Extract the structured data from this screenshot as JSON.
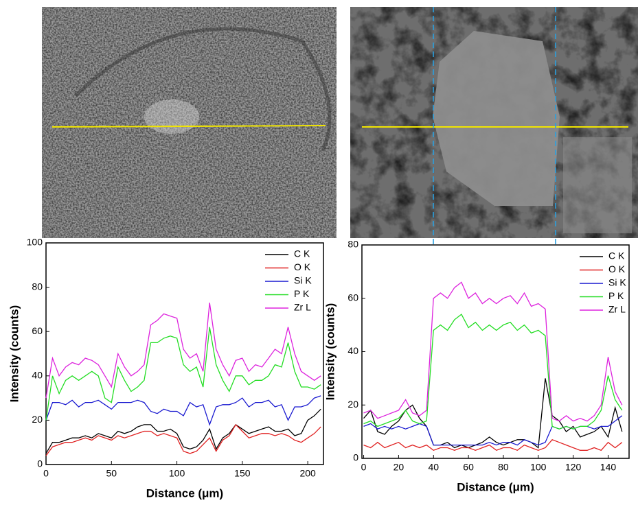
{
  "chart_data": [
    {
      "type": "line",
      "xlabel": "Distance (μm)",
      "ylabel": "Intensity (counts)",
      "x": [
        0,
        5,
        10,
        15,
        20,
        25,
        30,
        35,
        40,
        45,
        50,
        55,
        60,
        65,
        70,
        75,
        80,
        85,
        90,
        95,
        100,
        105,
        110,
        115,
        120,
        125,
        130,
        135,
        140,
        145,
        150,
        155,
        160,
        165,
        170,
        175,
        180,
        185,
        190,
        195,
        200,
        205,
        210
      ],
      "xlim": [
        0,
        212
      ],
      "xticks": [
        0,
        50,
        100,
        150,
        200
      ],
      "ylim": [
        0,
        100
      ],
      "yticks": [
        0,
        20,
        40,
        60,
        80,
        100
      ],
      "series": [
        {
          "name": "C K",
          "color": "#000000",
          "values": [
            5,
            10,
            10,
            11,
            12,
            12,
            13,
            12,
            14,
            13,
            12,
            15,
            14,
            15,
            17,
            18,
            18,
            15,
            15,
            16,
            14,
            8,
            7,
            8,
            11,
            16,
            7,
            12,
            14,
            18,
            16,
            14,
            15,
            16,
            17,
            15,
            15,
            16,
            13,
            14,
            20,
            22,
            25
          ]
        },
        {
          "name": "O K",
          "color": "#e02020",
          "values": [
            4,
            8,
            9,
            10,
            10,
            11,
            12,
            11,
            13,
            12,
            11,
            13,
            12,
            13,
            14,
            15,
            15,
            13,
            14,
            13,
            12,
            6,
            5,
            6,
            9,
            12,
            6,
            11,
            13,
            18,
            15,
            12,
            13,
            14,
            14,
            13,
            14,
            13,
            11,
            10,
            12,
            14,
            17
          ]
        },
        {
          "name": "Si K",
          "color": "#1a1ad0",
          "values": [
            20,
            28,
            28,
            27,
            29,
            26,
            28,
            28,
            29,
            27,
            25,
            28,
            28,
            28,
            29,
            28,
            24,
            23,
            25,
            24,
            24,
            22,
            28,
            26,
            27,
            18,
            26,
            27,
            27,
            28,
            30,
            26,
            28,
            28,
            29,
            26,
            27,
            20,
            26,
            26,
            27,
            30,
            31
          ]
        },
        {
          "name": "P K",
          "color": "#22dd22",
          "values": [
            20,
            40,
            32,
            38,
            40,
            38,
            40,
            42,
            40,
            30,
            28,
            44,
            38,
            33,
            35,
            38,
            55,
            55,
            57,
            58,
            57,
            45,
            42,
            44,
            35,
            62,
            45,
            38,
            33,
            40,
            40,
            36,
            38,
            38,
            40,
            45,
            44,
            55,
            42,
            35,
            35,
            34,
            36
          ]
        },
        {
          "name": "Zr L",
          "color": "#dd22dd",
          "values": [
            30,
            48,
            40,
            44,
            46,
            45,
            48,
            47,
            45,
            40,
            35,
            50,
            44,
            40,
            42,
            45,
            63,
            65,
            68,
            67,
            66,
            52,
            48,
            50,
            42,
            73,
            52,
            45,
            40,
            47,
            48,
            42,
            45,
            44,
            48,
            52,
            50,
            62,
            50,
            42,
            40,
            38,
            40
          ]
        }
      ]
    },
    {
      "type": "line",
      "xlabel": "Distance (μm)",
      "ylabel": "Intensity (counts)",
      "x": [
        0,
        4,
        8,
        12,
        16,
        20,
        24,
        28,
        32,
        36,
        40,
        44,
        48,
        52,
        56,
        60,
        64,
        68,
        72,
        76,
        80,
        84,
        88,
        92,
        96,
        100,
        104,
        108,
        112,
        116,
        120,
        124,
        128,
        132,
        136,
        140,
        144,
        148
      ],
      "xlim": [
        -1,
        152
      ],
      "xticks": [
        0,
        20,
        40,
        60,
        80,
        100,
        120,
        140
      ],
      "ylim": [
        0,
        80
      ],
      "yticks": [
        0,
        20,
        40,
        60,
        80
      ],
      "series": [
        {
          "name": "C K",
          "color": "#000000",
          "values": [
            15,
            18,
            10,
            9,
            12,
            14,
            18,
            20,
            15,
            12,
            5,
            5,
            6,
            4,
            5,
            4,
            5,
            6,
            8,
            6,
            5,
            6,
            7,
            7,
            6,
            4,
            30,
            16,
            14,
            10,
            12,
            8,
            9,
            10,
            12,
            8,
            19,
            10
          ]
        },
        {
          "name": "O K",
          "color": "#e02020",
          "values": [
            5,
            4,
            6,
            4,
            5,
            6,
            4,
            5,
            4,
            5,
            3,
            4,
            4,
            3,
            4,
            4,
            3,
            4,
            5,
            3,
            4,
            4,
            3,
            5,
            4,
            3,
            4,
            7,
            6,
            5,
            4,
            3,
            3,
            4,
            3,
            6,
            4,
            6
          ]
        },
        {
          "name": "Si K",
          "color": "#1a1ad0",
          "values": [
            12,
            13,
            11,
            12,
            11,
            12,
            11,
            12,
            13,
            12,
            5,
            5,
            5,
            5,
            5,
            5,
            5,
            5,
            6,
            5,
            6,
            6,
            5,
            7,
            6,
            5,
            6,
            12,
            11,
            12,
            11,
            12,
            12,
            11,
            12,
            12,
            14,
            16
          ]
        },
        {
          "name": "P K",
          "color": "#22dd22",
          "values": [
            13,
            14,
            12,
            13,
            14,
            15,
            18,
            14,
            13,
            14,
            48,
            50,
            48,
            52,
            54,
            49,
            51,
            48,
            50,
            48,
            50,
            51,
            48,
            50,
            47,
            48,
            46,
            12,
            11,
            12,
            11,
            12,
            12,
            14,
            18,
            31,
            22,
            18
          ]
        },
        {
          "name": "Zr L",
          "color": "#dd22dd",
          "values": [
            17,
            18,
            15,
            16,
            17,
            18,
            22,
            17,
            16,
            18,
            60,
            62,
            60,
            64,
            66,
            60,
            62,
            58,
            60,
            58,
            60,
            61,
            58,
            62,
            57,
            58,
            56,
            15,
            14,
            16,
            14,
            15,
            14,
            16,
            20,
            38,
            25,
            20
          ]
        }
      ]
    }
  ]
}
